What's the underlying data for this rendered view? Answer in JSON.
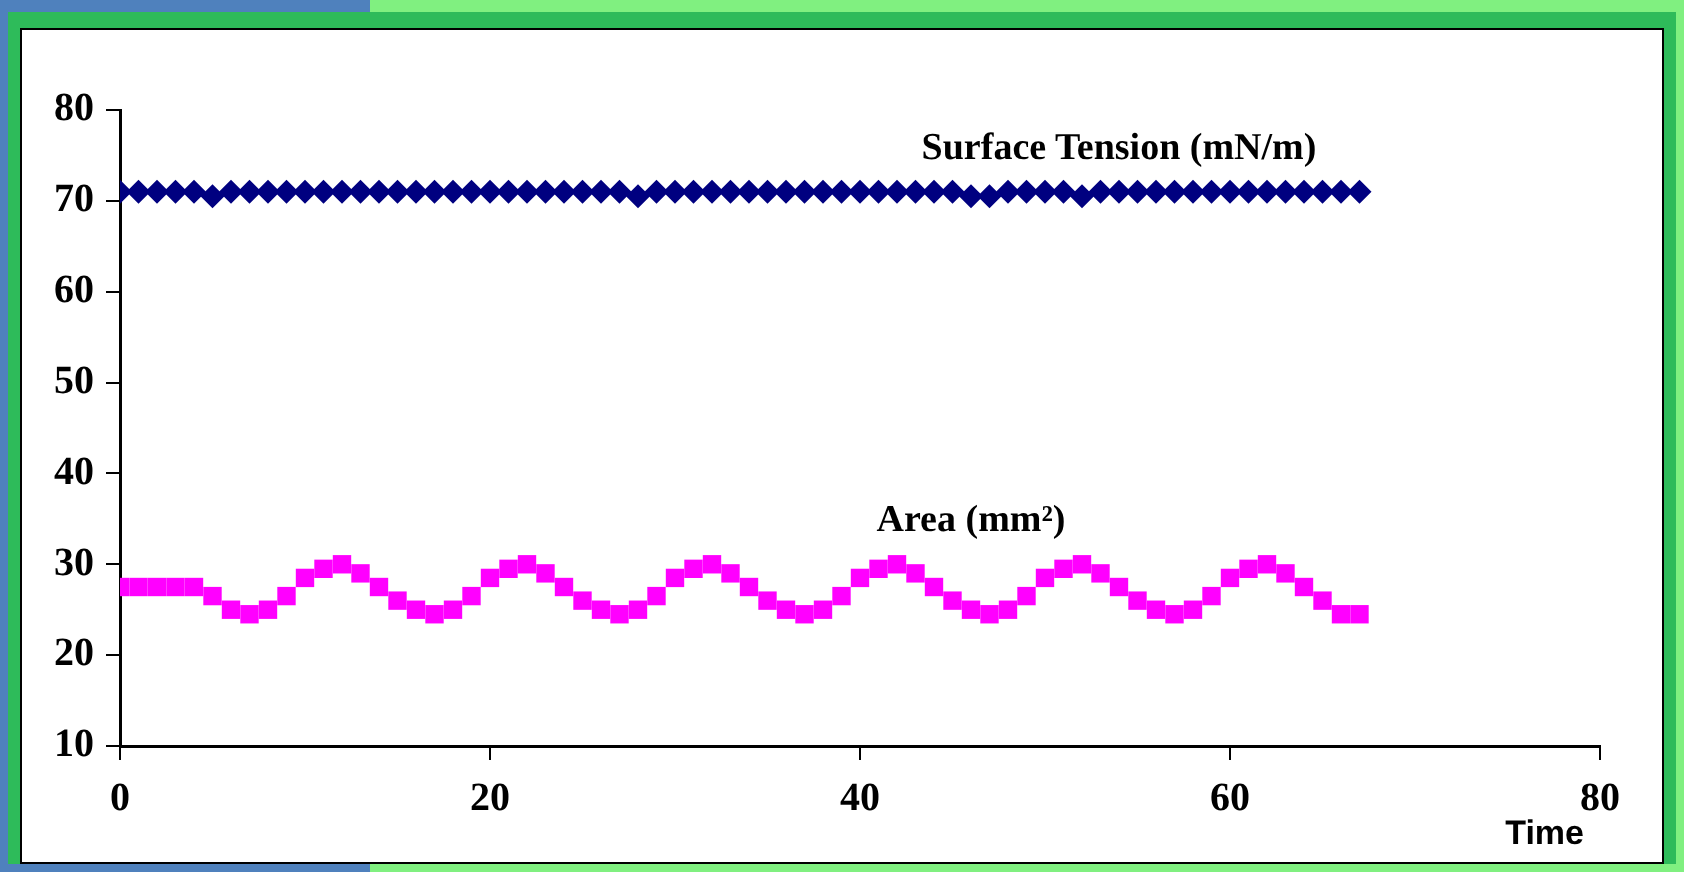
{
  "chart_data": {
    "type": "scatter",
    "xlabel": "Time",
    "x": [
      0,
      1,
      2,
      3,
      4,
      5,
      6,
      7,
      8,
      9,
      10,
      11,
      12,
      13,
      14,
      15,
      16,
      17,
      18,
      19,
      20,
      21,
      22,
      23,
      24,
      25,
      26,
      27,
      28,
      29,
      30,
      31,
      32,
      33,
      34,
      35,
      36,
      37,
      38,
      39,
      40,
      41,
      42,
      43,
      44,
      45,
      46,
      47,
      48,
      49,
      50,
      51,
      52,
      53,
      54,
      55,
      56,
      57,
      58,
      59,
      60,
      61,
      62,
      63,
      64,
      65,
      66,
      67
    ],
    "series": [
      {
        "name": "Surface Tension (mN/m)",
        "color": "#000080",
        "marker": "diamond",
        "values": [
          71,
          71,
          71,
          71,
          71,
          70.5,
          71,
          71,
          71,
          71,
          71,
          71,
          71,
          71,
          71,
          71,
          71,
          71,
          71,
          71,
          71,
          71,
          71,
          71,
          71,
          71,
          71,
          71,
          70.5,
          71,
          71,
          71,
          71,
          71,
          71,
          71,
          71,
          71,
          71,
          71,
          71,
          71,
          71,
          71,
          71,
          71,
          70.5,
          70.5,
          71,
          71,
          71,
          71,
          70.5,
          71,
          71,
          71,
          71,
          71,
          71,
          71,
          71,
          71,
          71,
          71,
          71,
          71,
          71,
          71
        ]
      },
      {
        "name": "Area (mm²)",
        "color": "#ff00ff",
        "marker": "square",
        "values": [
          27.5,
          27.5,
          27.5,
          27.5,
          27.5,
          26.5,
          25,
          24.5,
          25,
          26.5,
          28.5,
          29.5,
          30,
          29,
          27.5,
          26,
          25,
          24.5,
          25,
          26.5,
          28.5,
          29.5,
          30,
          29,
          27.5,
          26,
          25,
          24.5,
          25,
          26.5,
          28.5,
          29.5,
          30,
          29,
          27.5,
          26,
          25,
          24.5,
          25,
          26.5,
          28.5,
          29.5,
          30,
          29,
          27.5,
          26,
          25,
          24.5,
          25,
          26.5,
          28.5,
          29.5,
          30,
          29,
          27.5,
          26,
          25,
          24.5,
          25,
          26.5,
          28.5,
          29.5,
          30,
          29,
          27.5,
          26,
          24.5,
          24.5
        ]
      }
    ],
    "xlim": [
      0,
      80
    ],
    "xticks": [
      0,
      20,
      40,
      60,
      80
    ],
    "ylim": [
      10,
      80
    ],
    "yticks": [
      10,
      20,
      30,
      40,
      50,
      60,
      70,
      80
    ],
    "grid": false,
    "legend": false
  }
}
